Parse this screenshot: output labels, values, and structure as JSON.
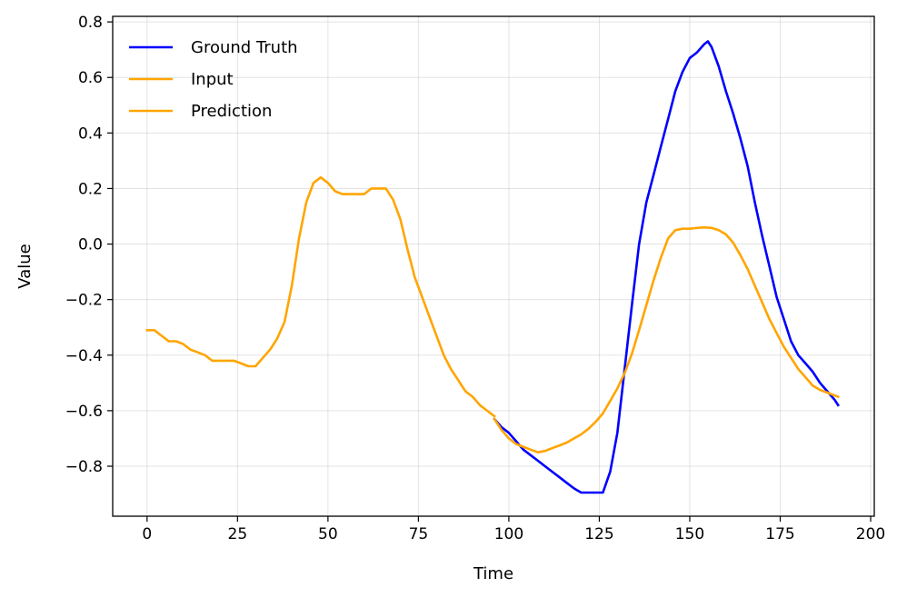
{
  "chart_data": {
    "type": "line",
    "xlabel": "Time",
    "ylabel": "Value",
    "xlim": [
      -9.5,
      201
    ],
    "ylim": [
      -0.98,
      0.82
    ],
    "xticks": [
      0,
      25,
      50,
      75,
      100,
      125,
      150,
      175,
      200
    ],
    "xtick_labels": [
      "0",
      "25",
      "50",
      "75",
      "100",
      "125",
      "150",
      "175",
      "200"
    ],
    "yticks": [
      -0.8,
      -0.6,
      -0.4,
      -0.2,
      0.0,
      0.2,
      0.4,
      0.6,
      0.8
    ],
    "ytick_labels": [
      "−0.8",
      "−0.6",
      "−0.4",
      "−0.2",
      "0.0",
      "0.2",
      "0.4",
      "0.6",
      "0.8"
    ],
    "grid": true,
    "legend_position": "top-left",
    "series": [
      {
        "name": "Ground Truth",
        "color": "#0000ff",
        "x": [
          96,
          98,
          100,
          102,
          104,
          106,
          108,
          110,
          112,
          114,
          116,
          118,
          120,
          122,
          124,
          126,
          128,
          130,
          132,
          134,
          136,
          138,
          140,
          142,
          144,
          146,
          148,
          150,
          152,
          154,
          155,
          156,
          158,
          160,
          162,
          164,
          166,
          168,
          170,
          172,
          174,
          176,
          178,
          180,
          182,
          184,
          186,
          188,
          190,
          191
        ],
        "y": [
          -0.63,
          -0.66,
          -0.68,
          -0.71,
          -0.74,
          -0.76,
          -0.78,
          -0.8,
          -0.82,
          -0.84,
          -0.86,
          -0.88,
          -0.895,
          -0.895,
          -0.895,
          -0.895,
          -0.82,
          -0.68,
          -0.45,
          -0.22,
          0.0,
          0.15,
          0.25,
          0.35,
          0.45,
          0.55,
          0.62,
          0.67,
          0.69,
          0.72,
          0.73,
          0.71,
          0.64,
          0.55,
          0.47,
          0.38,
          0.28,
          0.15,
          0.03,
          -0.08,
          -0.19,
          -0.27,
          -0.35,
          -0.4,
          -0.43,
          -0.46,
          -0.5,
          -0.53,
          -0.56,
          -0.58
        ]
      },
      {
        "name": "Input",
        "color": "#ffa500",
        "x": [
          0,
          2,
          4,
          6,
          8,
          10,
          12,
          14,
          16,
          18,
          20,
          22,
          24,
          26,
          28,
          30,
          32,
          34,
          36,
          38,
          40,
          42,
          44,
          46,
          48,
          50,
          52,
          54,
          56,
          58,
          60,
          62,
          64,
          66,
          68,
          70,
          72,
          74,
          76,
          78,
          80,
          82,
          84,
          86,
          88,
          90,
          92,
          94,
          96
        ],
        "y": [
          -0.31,
          -0.31,
          -0.33,
          -0.35,
          -0.35,
          -0.36,
          -0.38,
          -0.39,
          -0.4,
          -0.42,
          -0.42,
          -0.42,
          -0.42,
          -0.43,
          -0.44,
          -0.44,
          -0.41,
          -0.38,
          -0.34,
          -0.28,
          -0.15,
          0.02,
          0.15,
          0.22,
          0.24,
          0.22,
          0.19,
          0.18,
          0.18,
          0.18,
          0.18,
          0.2,
          0.2,
          0.2,
          0.16,
          0.09,
          -0.02,
          -0.12,
          -0.19,
          -0.26,
          -0.33,
          -0.4,
          -0.45,
          -0.49,
          -0.53,
          -0.55,
          -0.58,
          -0.6,
          -0.62
        ]
      },
      {
        "name": "Prediction",
        "color": "#ffa500",
        "x": [
          96,
          98,
          100,
          102,
          104,
          106,
          108,
          110,
          112,
          114,
          116,
          118,
          120,
          122,
          124,
          126,
          128,
          130,
          132,
          134,
          136,
          138,
          140,
          142,
          144,
          146,
          148,
          150,
          152,
          154,
          156,
          158,
          160,
          162,
          164,
          166,
          168,
          170,
          172,
          174,
          176,
          178,
          180,
          182,
          184,
          186,
          188,
          190,
          191
        ],
        "y": [
          -0.63,
          -0.67,
          -0.7,
          -0.72,
          -0.73,
          -0.74,
          -0.75,
          -0.745,
          -0.735,
          -0.725,
          -0.715,
          -0.7,
          -0.685,
          -0.665,
          -0.64,
          -0.61,
          -0.565,
          -0.52,
          -0.465,
          -0.395,
          -0.31,
          -0.22,
          -0.13,
          -0.05,
          0.02,
          0.05,
          0.055,
          0.055,
          0.058,
          0.06,
          0.058,
          0.05,
          0.035,
          0.005,
          -0.04,
          -0.09,
          -0.15,
          -0.21,
          -0.27,
          -0.32,
          -0.37,
          -0.41,
          -0.45,
          -0.48,
          -0.51,
          -0.525,
          -0.535,
          -0.545,
          -0.55
        ]
      }
    ]
  }
}
